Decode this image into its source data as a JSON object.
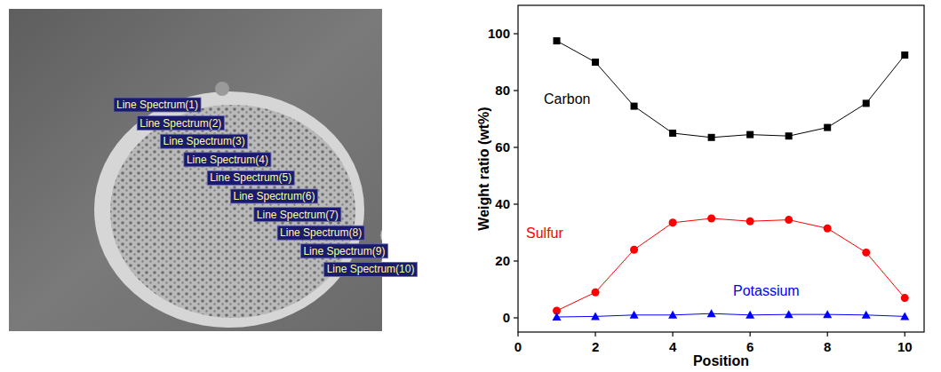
{
  "sem_image": {
    "labels": [
      "Line Spectrum(1)",
      "Line Spectrum(2)",
      "Line Spectrum(3)",
      "Line Spectrum(4)",
      "Line Spectrum(5)",
      "Line Spectrum(6)",
      "Line Spectrum(7)",
      "Line Spectrum(8)",
      "Line Spectrum(9)",
      "Line Spectrum(10)"
    ]
  },
  "chart_data": {
    "type": "line",
    "x_label": "Position",
    "y_label": "Weight ratio (wt%)",
    "x": [
      1,
      2,
      3,
      4,
      5,
      6,
      7,
      8,
      9,
      10
    ],
    "series": [
      {
        "name": "Carbon",
        "color": "#000000",
        "marker": "square",
        "line_style": "solid",
        "values": [
          97.5,
          90,
          74.5,
          65,
          63.5,
          64.5,
          64,
          67,
          75.5,
          92.5
        ]
      },
      {
        "name": "Sulfur",
        "color": "#ff0000",
        "marker": "circle",
        "line_style": "solid",
        "values": [
          2.5,
          9,
          24,
          33.5,
          35,
          34,
          34.5,
          31.5,
          23,
          7
        ]
      },
      {
        "name": "Potassium",
        "color": "#0000ff",
        "marker": "triangle",
        "line_style": "solid",
        "values": [
          0.3,
          0.5,
          1,
          1,
          1.5,
          1,
          1.2,
          1.2,
          1,
          0.5
        ]
      }
    ],
    "xlim": [
      0,
      10.5
    ],
    "xticks": [
      0,
      2,
      4,
      6,
      8,
      10
    ],
    "ylim": [
      -5,
      110
    ],
    "yticks": [
      0,
      20,
      40,
      60,
      80,
      100
    ],
    "grid": false
  }
}
